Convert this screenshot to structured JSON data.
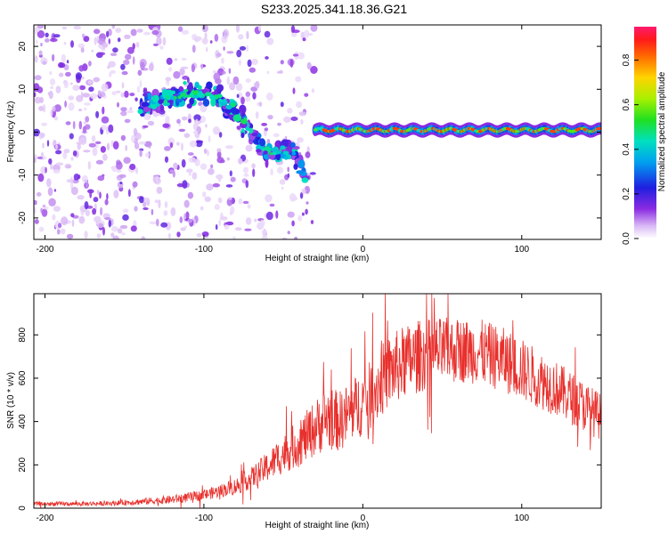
{
  "title": "S233.2025.341.18.36.G21",
  "colors": {
    "snr_line": "#e8302c",
    "axis": "#000000",
    "background": "#ffffff"
  },
  "chart_data": [
    {
      "type": "heatmap",
      "title": "S233.2025.341.18.36.G21",
      "xlabel": "Height of straight line (km)",
      "ylabel": "Frequency (Hz)",
      "xlim": [
        -207,
        150
      ],
      "ylim": [
        -25,
        25
      ],
      "xticks": [
        -200,
        -100,
        0,
        100
      ],
      "yticks": [
        -20,
        -10,
        0,
        10,
        20
      ],
      "colorbar": {
        "label": "Normalized spectral amplitude",
        "range": [
          0,
          0.95
        ],
        "ticks": [
          0.0,
          0.2,
          0.4,
          0.6,
          0.8
        ]
      },
      "features": [
        {
          "name": "scattered noise",
          "x_range": [
            -207,
            -30
          ],
          "y_range": [
            -25,
            25
          ],
          "amplitude": "low (0.0-0.2)"
        },
        {
          "name": "arched band",
          "path_x": [
            -140,
            -110,
            -95,
            -80,
            -60,
            -45,
            -35
          ],
          "path_y": [
            6,
            9,
            9,
            5,
            -5,
            -4,
            -10
          ],
          "amplitude": "0.2-0.5"
        },
        {
          "name": "steady tone",
          "x_range": [
            -30,
            150
          ],
          "y_center": 0.5,
          "y_halfwidth": 1.5,
          "amplitude": "up to 0.9"
        }
      ]
    },
    {
      "type": "line",
      "xlabel": "Height of straight line (km)",
      "ylabel": "SNR (10 * v/v)",
      "xlim": [
        -207,
        150
      ],
      "ylim": [
        0,
        990
      ],
      "xticks": [
        -200,
        -100,
        0,
        100
      ],
      "yticks": [
        0,
        200,
        400,
        600,
        800
      ],
      "series": [
        {
          "name": "SNR",
          "x": [
            -207,
            -180,
            -160,
            -140,
            -120,
            -100,
            -90,
            -80,
            -70,
            -60,
            -50,
            -40,
            -30,
            -22,
            -15,
            -5,
            5,
            15,
            25,
            35,
            45,
            60,
            75,
            90,
            105,
            120,
            135,
            150
          ],
          "y": [
            20,
            20,
            22,
            30,
            40,
            60,
            80,
            100,
            140,
            190,
            250,
            300,
            370,
            420,
            400,
            460,
            520,
            620,
            670,
            700,
            720,
            730,
            720,
            680,
            620,
            560,
            490,
            420
          ],
          "spread": [
            10,
            10,
            10,
            15,
            20,
            25,
            30,
            40,
            50,
            70,
            90,
            110,
            130,
            150,
            140,
            150,
            160,
            170,
            170,
            170,
            160,
            150,
            150,
            150,
            140,
            130,
            120,
            110
          ]
        }
      ]
    }
  ]
}
